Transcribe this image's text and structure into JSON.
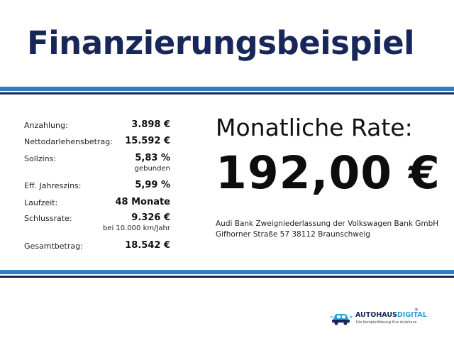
{
  "title": "Finanzierungsbeispiel",
  "details": [
    {
      "label": "Anzahlung:",
      "value": "3.898 €",
      "sub": ""
    },
    {
      "label": "Nettodarlehensbetrag:",
      "value": "15.592 €",
      "sub": ""
    },
    {
      "label": "Sollzins:",
      "value": "5,83 %",
      "sub": "gebunden"
    },
    {
      "label": "Eff. Jahreszins:",
      "value": "5,99 %",
      "sub": ""
    },
    {
      "label": "Laufzeit:",
      "value": "48 Monate",
      "sub": ""
    },
    {
      "label": "Schlussrate:",
      "value": "9.326 €",
      "sub": "bei 10.000 km/Jahr"
    },
    {
      "label": "Gesamtbetrag:",
      "value": "18.542 €",
      "sub": ""
    }
  ],
  "rate": {
    "label": "Monatliche Rate:",
    "value": "192,00 €"
  },
  "bank": {
    "line1": "Audi Bank Zweigniederlassung der Volkswagen Bank GmbH",
    "line2": "Gifhorner Straße 57 38112 Braunschweig"
  },
  "logo": {
    "name_main": "AUTOHAUS",
    "name_accent": "DIGITAL",
    "registered": "®",
    "tagline": "Die Komplettlösung fürs Autohaus",
    "icon": "car-circuit-icon"
  },
  "colors": {
    "navy": "#17275a",
    "blue": "#2f7fc3",
    "accent": "#2f9fd8"
  }
}
